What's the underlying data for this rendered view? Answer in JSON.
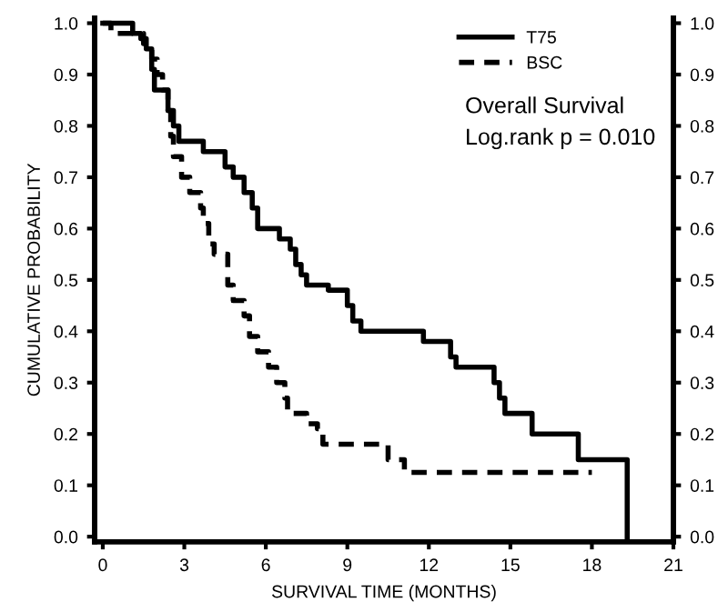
{
  "chart_data": {
    "type": "step",
    "xlabel": "SURVIVAL TIME (MONTHS)",
    "ylabel": "CUMULATIVE PROBABILITY",
    "annotations": [
      "Overall Survival",
      "Log.rank p = 0.010"
    ],
    "series": [
      {
        "name": "T75",
        "color": "#000000",
        "line_style": "solid",
        "x": [
          0,
          1.1,
          1.4,
          1.6,
          1.8,
          1.9,
          2.4,
          2.6,
          2.8,
          3.7,
          4.5,
          4.8,
          5.2,
          5.5,
          5.7,
          6.5,
          6.9,
          7.1,
          7.3,
          7.5,
          8.3,
          9.0,
          9.2,
          9.5,
          11.8,
          12.8,
          13.0,
          14.4,
          14.6,
          14.8,
          15.8,
          17.5,
          19.3
        ],
        "values": [
          1.0,
          0.98,
          0.97,
          0.95,
          0.91,
          0.87,
          0.83,
          0.8,
          0.77,
          0.75,
          0.72,
          0.7,
          0.67,
          0.64,
          0.6,
          0.58,
          0.56,
          0.53,
          0.51,
          0.49,
          0.48,
          0.45,
          0.42,
          0.4,
          0.38,
          0.35,
          0.33,
          0.3,
          0.27,
          0.24,
          0.2,
          0.15,
          0.0
        ]
      },
      {
        "name": "BSC",
        "color": "#000000",
        "line_style": "dashed",
        "x": [
          0,
          0.3,
          1.5,
          1.8,
          2.0,
          2.2,
          2.4,
          2.5,
          2.6,
          2.9,
          3.2,
          3.6,
          3.7,
          3.9,
          4.1,
          4.6,
          4.8,
          5.2,
          5.4,
          5.7,
          6.1,
          6.4,
          6.7,
          6.8,
          7.5,
          7.9,
          8.1,
          10.5,
          11.1,
          18.0
        ],
        "values": [
          1.0,
          0.98,
          0.96,
          0.93,
          0.9,
          0.87,
          0.83,
          0.78,
          0.74,
          0.7,
          0.67,
          0.64,
          0.61,
          0.57,
          0.55,
          0.49,
          0.46,
          0.43,
          0.39,
          0.36,
          0.33,
          0.3,
          0.27,
          0.24,
          0.22,
          0.21,
          0.18,
          0.15,
          0.125,
          0.125
        ]
      }
    ],
    "xlim": [
      -0.3,
      21
    ],
    "xticks": [
      0,
      3,
      6,
      9,
      12,
      15,
      18,
      21
    ],
    "ylim": [
      -0.01,
      1.01
    ],
    "yticks": [
      {
        "value": 0,
        "label": "0.0"
      },
      0.1,
      0.2,
      0.3,
      0.4,
      0.5,
      0.6,
      0.7,
      0.8,
      0.9,
      {
        "value": 1,
        "label": "1.0"
      }
    ],
    "y2lim": [
      -0.01,
      1.01
    ],
    "y2ticks": [
      {
        "value": 0,
        "label": "0.0"
      },
      0.1,
      0.2,
      0.3,
      0.4,
      0.5,
      0.6,
      0.7,
      0.8,
      0.9,
      {
        "value": 1,
        "label": "1.0"
      }
    ],
    "legend": "top right",
    "grid": false
  }
}
